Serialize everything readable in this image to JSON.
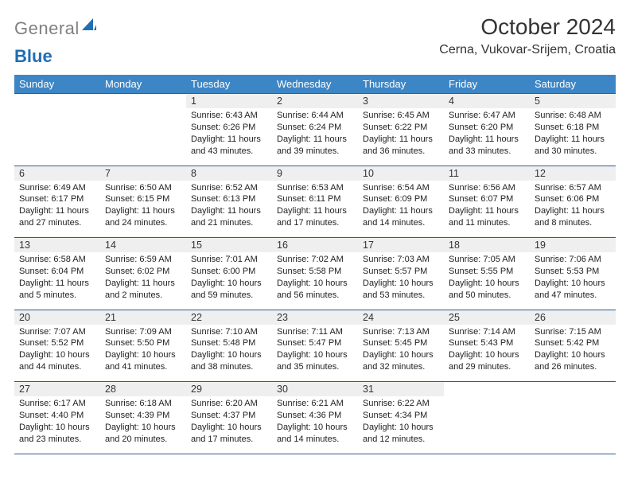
{
  "brand": {
    "part1": "General",
    "part2": "Blue"
  },
  "title": "October 2024",
  "location": "Cerna, Vukovar-Srijem, Croatia",
  "colors": {
    "header": "#3d86c6",
    "rule": "#2a5d95",
    "cellGray": "#efefef"
  },
  "weekdays": [
    "Sunday",
    "Monday",
    "Tuesday",
    "Wednesday",
    "Thursday",
    "Friday",
    "Saturday"
  ],
  "weeks": [
    {
      "days": [
        null,
        null,
        {
          "n": "1",
          "sr": "Sunrise: 6:43 AM",
          "ss": "Sunset: 6:26 PM",
          "dl": "Daylight: 11 hours and 43 minutes."
        },
        {
          "n": "2",
          "sr": "Sunrise: 6:44 AM",
          "ss": "Sunset: 6:24 PM",
          "dl": "Daylight: 11 hours and 39 minutes."
        },
        {
          "n": "3",
          "sr": "Sunrise: 6:45 AM",
          "ss": "Sunset: 6:22 PM",
          "dl": "Daylight: 11 hours and 36 minutes."
        },
        {
          "n": "4",
          "sr": "Sunrise: 6:47 AM",
          "ss": "Sunset: 6:20 PM",
          "dl": "Daylight: 11 hours and 33 minutes."
        },
        {
          "n": "5",
          "sr": "Sunrise: 6:48 AM",
          "ss": "Sunset: 6:18 PM",
          "dl": "Daylight: 11 hours and 30 minutes."
        }
      ]
    },
    {
      "days": [
        {
          "n": "6",
          "sr": "Sunrise: 6:49 AM",
          "ss": "Sunset: 6:17 PM",
          "dl": "Daylight: 11 hours and 27 minutes."
        },
        {
          "n": "7",
          "sr": "Sunrise: 6:50 AM",
          "ss": "Sunset: 6:15 PM",
          "dl": "Daylight: 11 hours and 24 minutes."
        },
        {
          "n": "8",
          "sr": "Sunrise: 6:52 AM",
          "ss": "Sunset: 6:13 PM",
          "dl": "Daylight: 11 hours and 21 minutes."
        },
        {
          "n": "9",
          "sr": "Sunrise: 6:53 AM",
          "ss": "Sunset: 6:11 PM",
          "dl": "Daylight: 11 hours and 17 minutes."
        },
        {
          "n": "10",
          "sr": "Sunrise: 6:54 AM",
          "ss": "Sunset: 6:09 PM",
          "dl": "Daylight: 11 hours and 14 minutes."
        },
        {
          "n": "11",
          "sr": "Sunrise: 6:56 AM",
          "ss": "Sunset: 6:07 PM",
          "dl": "Daylight: 11 hours and 11 minutes."
        },
        {
          "n": "12",
          "sr": "Sunrise: 6:57 AM",
          "ss": "Sunset: 6:06 PM",
          "dl": "Daylight: 11 hours and 8 minutes."
        }
      ]
    },
    {
      "days": [
        {
          "n": "13",
          "sr": "Sunrise: 6:58 AM",
          "ss": "Sunset: 6:04 PM",
          "dl": "Daylight: 11 hours and 5 minutes."
        },
        {
          "n": "14",
          "sr": "Sunrise: 6:59 AM",
          "ss": "Sunset: 6:02 PM",
          "dl": "Daylight: 11 hours and 2 minutes."
        },
        {
          "n": "15",
          "sr": "Sunrise: 7:01 AM",
          "ss": "Sunset: 6:00 PM",
          "dl": "Daylight: 10 hours and 59 minutes."
        },
        {
          "n": "16",
          "sr": "Sunrise: 7:02 AM",
          "ss": "Sunset: 5:58 PM",
          "dl": "Daylight: 10 hours and 56 minutes."
        },
        {
          "n": "17",
          "sr": "Sunrise: 7:03 AM",
          "ss": "Sunset: 5:57 PM",
          "dl": "Daylight: 10 hours and 53 minutes."
        },
        {
          "n": "18",
          "sr": "Sunrise: 7:05 AM",
          "ss": "Sunset: 5:55 PM",
          "dl": "Daylight: 10 hours and 50 minutes."
        },
        {
          "n": "19",
          "sr": "Sunrise: 7:06 AM",
          "ss": "Sunset: 5:53 PM",
          "dl": "Daylight: 10 hours and 47 minutes."
        }
      ]
    },
    {
      "days": [
        {
          "n": "20",
          "sr": "Sunrise: 7:07 AM",
          "ss": "Sunset: 5:52 PM",
          "dl": "Daylight: 10 hours and 44 minutes."
        },
        {
          "n": "21",
          "sr": "Sunrise: 7:09 AM",
          "ss": "Sunset: 5:50 PM",
          "dl": "Daylight: 10 hours and 41 minutes."
        },
        {
          "n": "22",
          "sr": "Sunrise: 7:10 AM",
          "ss": "Sunset: 5:48 PM",
          "dl": "Daylight: 10 hours and 38 minutes."
        },
        {
          "n": "23",
          "sr": "Sunrise: 7:11 AM",
          "ss": "Sunset: 5:47 PM",
          "dl": "Daylight: 10 hours and 35 minutes."
        },
        {
          "n": "24",
          "sr": "Sunrise: 7:13 AM",
          "ss": "Sunset: 5:45 PM",
          "dl": "Daylight: 10 hours and 32 minutes."
        },
        {
          "n": "25",
          "sr": "Sunrise: 7:14 AM",
          "ss": "Sunset: 5:43 PM",
          "dl": "Daylight: 10 hours and 29 minutes."
        },
        {
          "n": "26",
          "sr": "Sunrise: 7:15 AM",
          "ss": "Sunset: 5:42 PM",
          "dl": "Daylight: 10 hours and 26 minutes."
        }
      ]
    },
    {
      "days": [
        {
          "n": "27",
          "sr": "Sunrise: 6:17 AM",
          "ss": "Sunset: 4:40 PM",
          "dl": "Daylight: 10 hours and 23 minutes."
        },
        {
          "n": "28",
          "sr": "Sunrise: 6:18 AM",
          "ss": "Sunset: 4:39 PM",
          "dl": "Daylight: 10 hours and 20 minutes."
        },
        {
          "n": "29",
          "sr": "Sunrise: 6:20 AM",
          "ss": "Sunset: 4:37 PM",
          "dl": "Daylight: 10 hours and 17 minutes."
        },
        {
          "n": "30",
          "sr": "Sunrise: 6:21 AM",
          "ss": "Sunset: 4:36 PM",
          "dl": "Daylight: 10 hours and 14 minutes."
        },
        {
          "n": "31",
          "sr": "Sunrise: 6:22 AM",
          "ss": "Sunset: 4:34 PM",
          "dl": "Daylight: 10 hours and 12 minutes."
        },
        null,
        null
      ]
    }
  ]
}
